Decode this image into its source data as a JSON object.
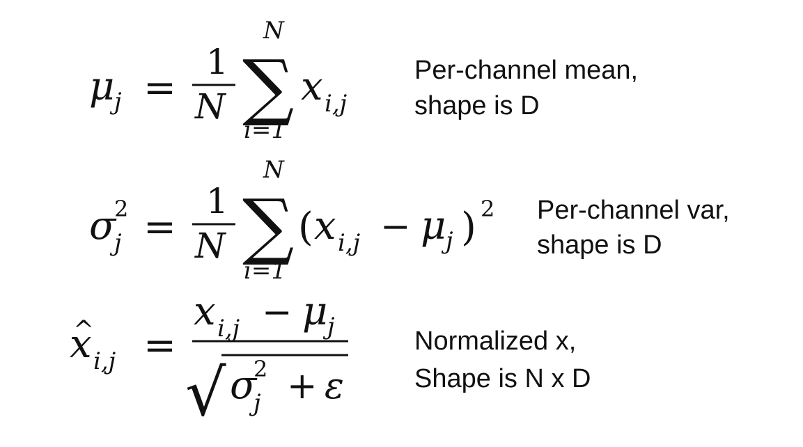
{
  "equations": [
    {
      "lhs": {
        "base": "μ",
        "sub": "j"
      },
      "equals": "=",
      "fraction": {
        "numerator": "1",
        "denominator": "N"
      },
      "sum": {
        "symbol": "∑",
        "upper": "N",
        "lower": "i=1"
      },
      "summand": {
        "var": "x",
        "sub": "i,j"
      },
      "description": [
        "Per-channel mean,",
        "shape is D"
      ]
    },
    {
      "lhs": {
        "base": "σ",
        "sup": "2",
        "sub": "j"
      },
      "equals": "=",
      "fraction": {
        "numerator": "1",
        "denominator": "N"
      },
      "sum": {
        "symbol": "∑",
        "upper": "N",
        "lower": "i=1"
      },
      "summand": {
        "open": "(",
        "var": "x",
        "sub": "i,j",
        "minus": "−",
        "mu": "μ",
        "mu_sub": "j",
        "close": ")",
        "power": "2"
      },
      "description": [
        "Per-channel var,",
        "shape is D"
      ]
    },
    {
      "lhs": {
        "base": "x",
        "hat": "^",
        "sub": "i,j"
      },
      "equals": "=",
      "numerator": {
        "var": "x",
        "sub": "i,j",
        "minus": "−",
        "mu": "μ",
        "mu_sub": "j"
      },
      "denominator": {
        "radical": "√",
        "sigma": "σ",
        "sup": "2",
        "sub": "j",
        "plus": "+",
        "epsilon": "ε"
      },
      "description": [
        "Normalized x,",
        "Shape is N x D"
      ]
    }
  ]
}
